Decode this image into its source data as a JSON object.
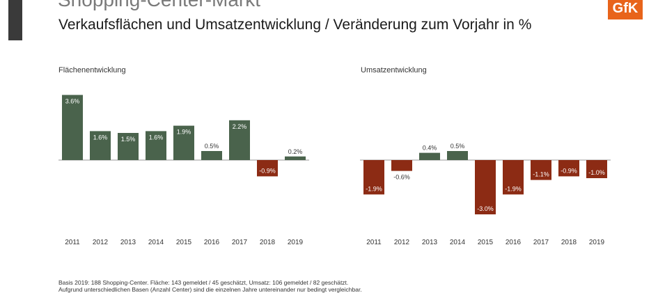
{
  "header": {
    "top_title": "Shopping-Center-Markt",
    "subtitle": "Verkaufsflächen und Umsatzentwicklung / Veränderung zum Vorjahr in %",
    "logo_text": "GfK"
  },
  "colors": {
    "positive": "#4a634c",
    "negative": "#8c2b14",
    "logo": "#e8641b"
  },
  "chart_data": [
    {
      "type": "bar",
      "title": "Flächenentwicklung",
      "categories": [
        "2011",
        "2012",
        "2013",
        "2014",
        "2015",
        "2016",
        "2017",
        "2018",
        "2019"
      ],
      "values": [
        3.6,
        1.6,
        1.5,
        1.6,
        1.9,
        0.5,
        2.2,
        -0.9,
        0.2
      ],
      "labels": [
        "3.6%",
        "1.6%",
        "1.5%",
        "1.6%",
        "1.9%",
        "0.5%",
        "2.2%",
        "-0.9%",
        "0.2%"
      ],
      "unit": "%"
    },
    {
      "type": "bar",
      "title": "Umsatzentwicklung",
      "categories": [
        "2011",
        "2012",
        "2013",
        "2014",
        "2015",
        "2016",
        "2017",
        "2018",
        "2019"
      ],
      "values": [
        -1.9,
        -0.6,
        0.4,
        0.5,
        -3.0,
        -1.9,
        -1.1,
        -0.9,
        -1.0
      ],
      "labels": [
        "-1.9%",
        "-0.6%",
        "0.4%",
        "0.5%",
        "-3.0%",
        "-1.9%",
        "-1.1%",
        "-0.9%",
        "-1.0%"
      ],
      "unit": "%"
    }
  ],
  "footnotes": [
    "Basis 2019: 188 Shopping-Center. Fläche: 143 gemeldet / 45 geschätzt, Umsatz: 106 gemeldet / 82  geschätzt.",
    "Aufgrund unterschiedlichen Basen (Anzahl Center) sind die einzelnen Jahre untereinander nur bedingt vergleichbar."
  ]
}
